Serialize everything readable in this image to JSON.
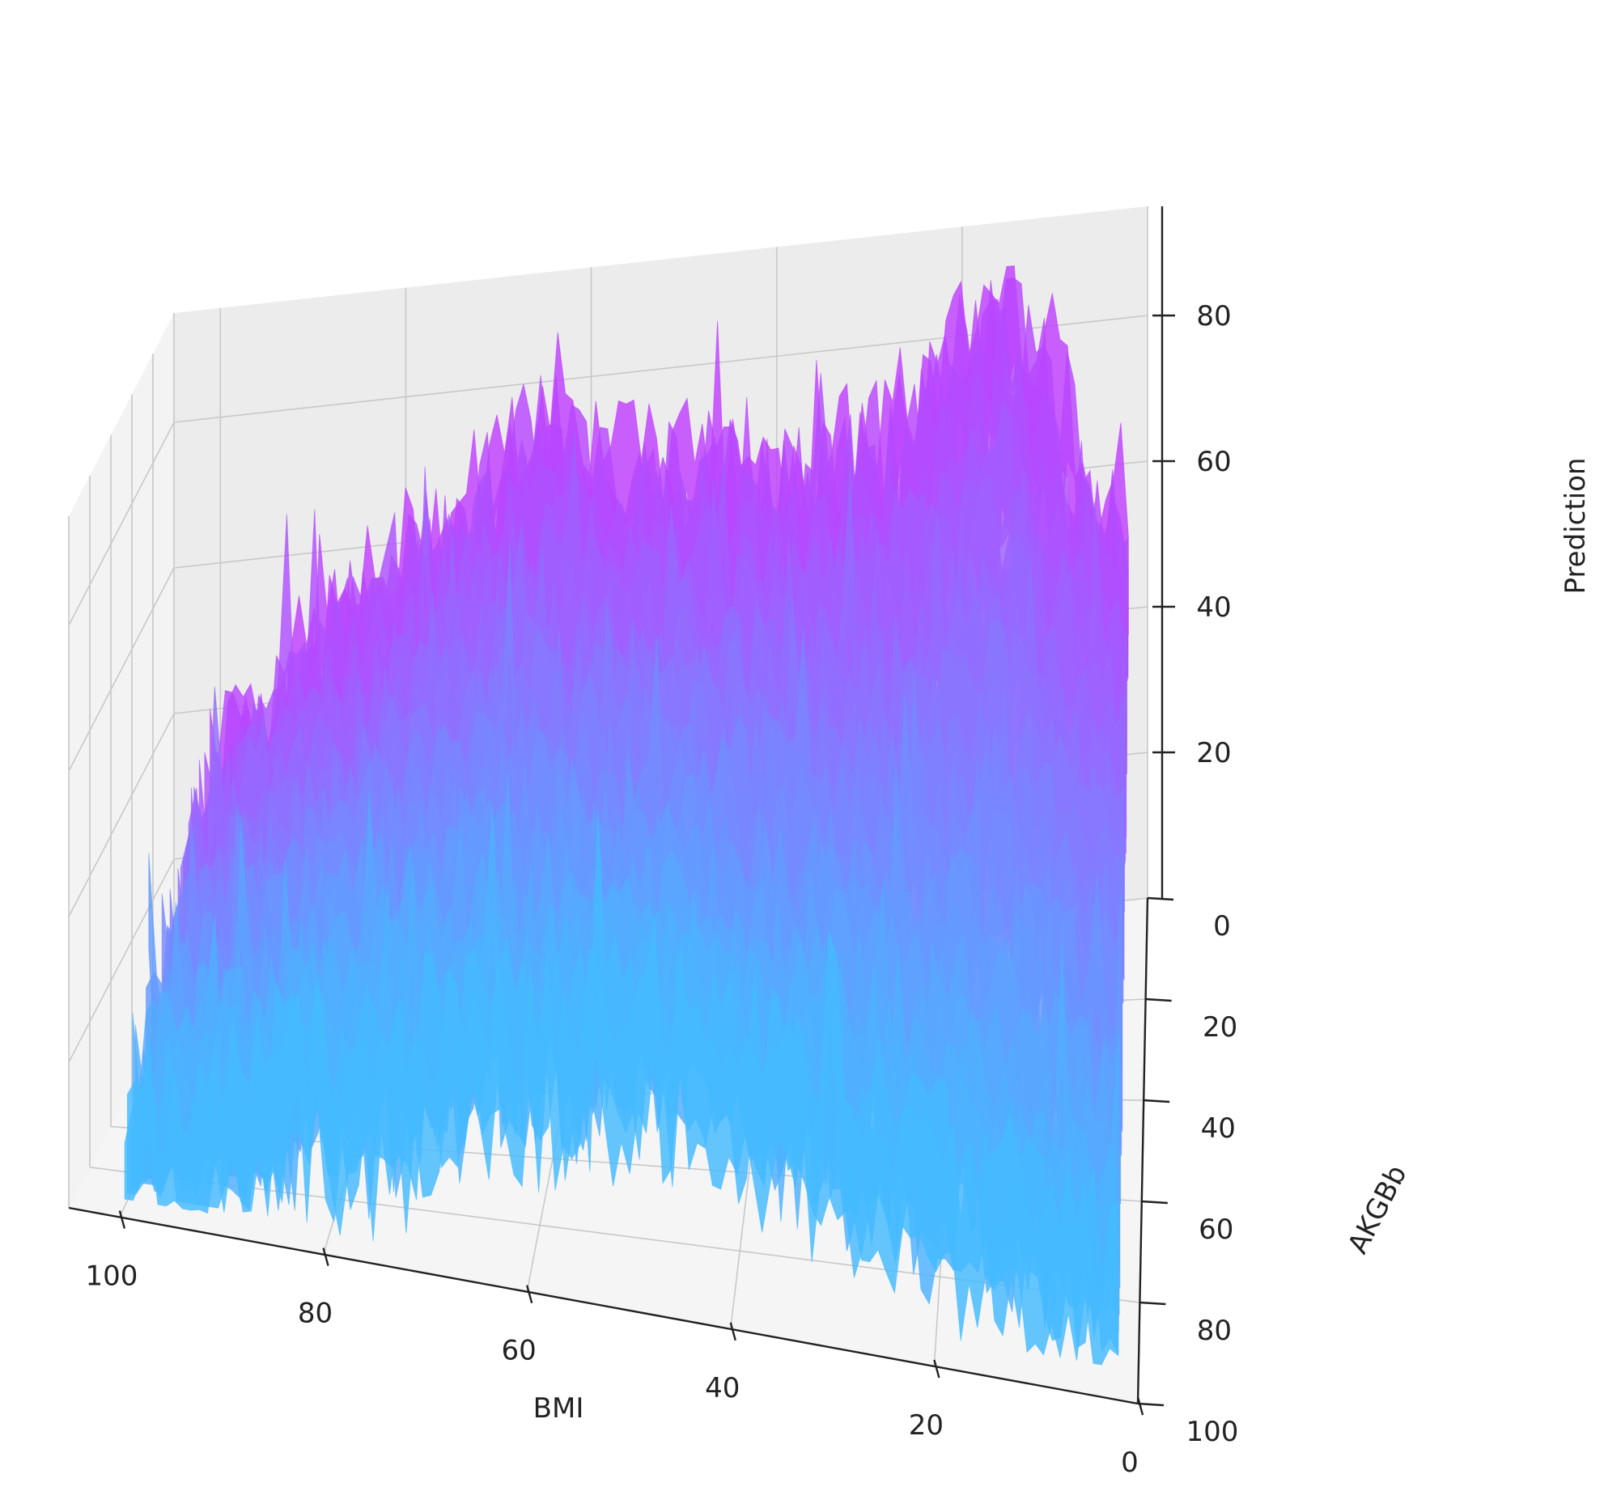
{
  "chart_data": {
    "type": "surface",
    "x_axis": {
      "label": "BMI",
      "ticks": [
        "100",
        "80",
        "60",
        "40",
        "20",
        "0"
      ],
      "range": [
        0,
        105
      ]
    },
    "y_axis": {
      "label": "AKGBb",
      "ticks": [
        "0",
        "20",
        "40",
        "60",
        "80",
        "100"
      ],
      "range": [
        0,
        100
      ]
    },
    "z_axis": {
      "label": "Prediction",
      "ticks": [
        "20",
        "40",
        "60",
        "80"
      ],
      "range": [
        0,
        95
      ]
    },
    "colormap": "cool",
    "colormap_colors": {
      "low": "#00ffff",
      "high": "#ff00ff"
    },
    "grid": true,
    "panes": true,
    "z_ridges": {
      "description": "approximate prediction height along the back (AKGBb≈5) and front (AKGBb≈95) edges",
      "bmi": [
        105,
        95,
        85,
        75,
        65,
        55,
        45,
        35,
        25,
        15,
        5,
        0
      ],
      "prediction_back": [
        30,
        42,
        55,
        66,
        78,
        70,
        72,
        68,
        75,
        92,
        62,
        60
      ],
      "prediction_front": [
        12,
        16,
        24,
        30,
        34,
        38,
        40,
        36,
        30,
        22,
        18,
        16
      ]
    }
  }
}
